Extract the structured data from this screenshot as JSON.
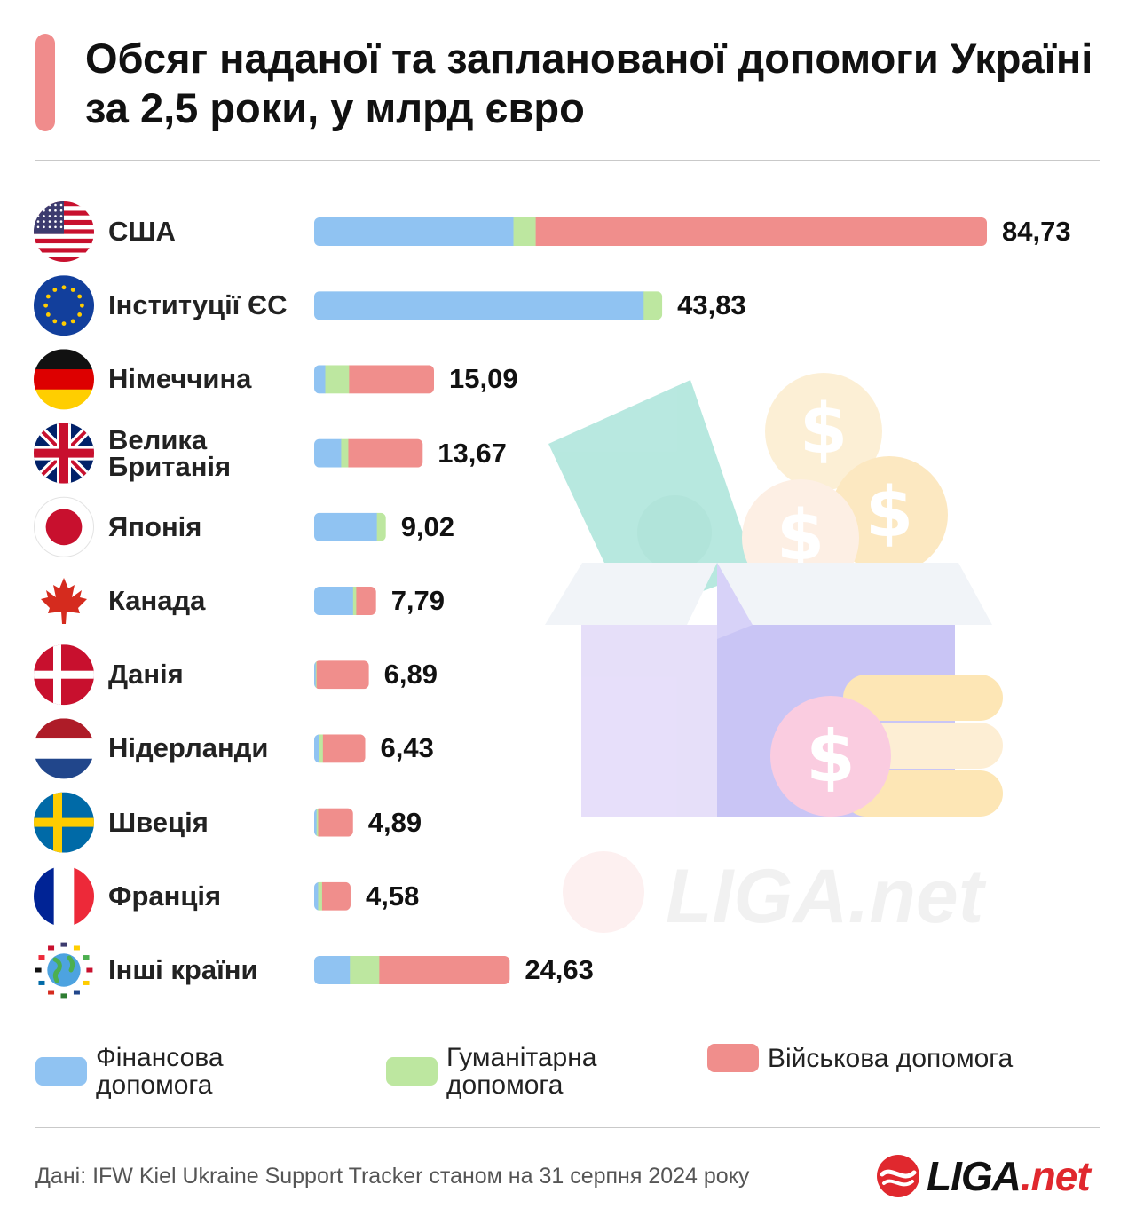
{
  "title": "Обсяг наданої та запланованої допомоги Україні за 2,5 роки, у млрд євро",
  "colors": {
    "accent": "#f08c8c",
    "financial": "#90c3f2",
    "humanitarian": "#bde7a0",
    "military": "#f08e8c",
    "brand_red": "#e0282e"
  },
  "chart_data": {
    "type": "bar",
    "orientation": "horizontal",
    "stacked": true,
    "unit": "млрд євро",
    "xlim": [
      0,
      84.73
    ],
    "categories": [
      "США",
      "Інституції ЄС",
      "Німеччина",
      "Велика\nБританія",
      "Японія",
      "Канада",
      "Данія",
      "Нідерланди",
      "Швеція",
      "Франція",
      "Інші країни"
    ],
    "flags": [
      "us-flag-icon",
      "eu-flag-icon",
      "germany-flag-icon",
      "uk-flag-icon",
      "japan-flag-icon",
      "canada-flag-icon",
      "denmark-flag-icon",
      "netherlands-flag-icon",
      "sweden-flag-icon",
      "france-flag-icon",
      "globe-icon"
    ],
    "totals": [
      "84,73",
      "43,83",
      "15,09",
      "13,67",
      "9,02",
      "7,79",
      "6,89",
      "6,43",
      "4,89",
      "4,58",
      "24,63"
    ],
    "series": [
      {
        "name": "Фінансова\nдопомога",
        "values": [
          25.1,
          41.5,
          1.4,
          3.4,
          7.9,
          4.9,
          0.2,
          0.6,
          0.3,
          0.5,
          4.5
        ]
      },
      {
        "name": "Гуманітарна\nдопомога",
        "values": [
          2.8,
          2.33,
          3.0,
          0.9,
          1.12,
          0.4,
          0.1,
          0.5,
          0.2,
          0.5,
          3.7
        ]
      },
      {
        "name": "Військова допомога",
        "values": [
          56.83,
          0.0,
          10.69,
          9.37,
          0.0,
          2.49,
          6.59,
          5.33,
          4.39,
          3.58,
          16.43
        ]
      }
    ],
    "grid": false
  },
  "source": "Дані: IFW Kiel Ukraine Support Tracker станом на 31 серпня 2024 року",
  "logo": {
    "name": "LIGA",
    "suffix": ".net"
  },
  "watermark": {
    "name": "LIGA",
    "suffix": ".net"
  }
}
